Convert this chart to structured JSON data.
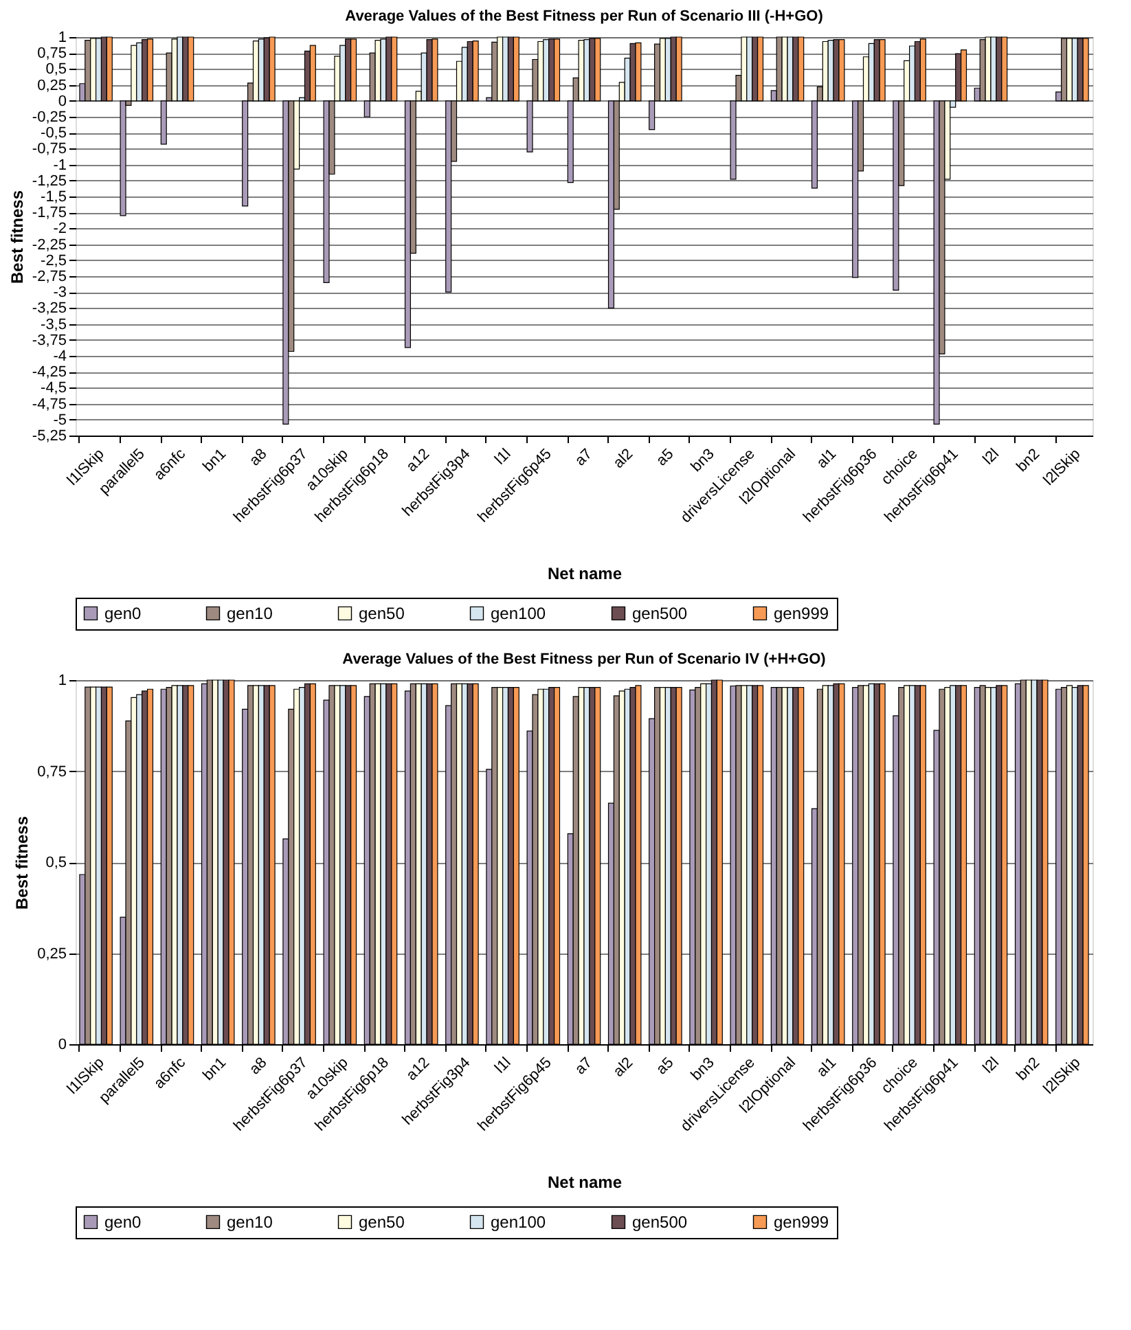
{
  "chart_data": [
    {
      "type": "bar",
      "title": "Average Values of the Best Fitness per Run of Scenario III (-H+GO)",
      "xlabel": "Net name",
      "ylabel": "Best fitness",
      "categories": [
        "l1lSkip",
        "parallel5",
        "a6nfc",
        "bn1",
        "a8",
        "herbstFig6p37",
        "a10skip",
        "herbstFig6p18",
        "a12",
        "herbstFig3p4",
        "l1l",
        "herbstFig6p45",
        "a7",
        "al2",
        "a5",
        "bn3",
        "driversLicense",
        "l2lOptional",
        "al1",
        "herbstFig6p36",
        "choice",
        "herbstFig6p41",
        "l2l",
        "bn2",
        "l2lSkip"
      ],
      "series": [
        {
          "name": "gen0",
          "color": "#a99bb8",
          "values": [
            0.27,
            -1.8,
            -0.68,
            null,
            -1.65,
            -5.07,
            -2.85,
            -0.25,
            -3.87,
            -3.0,
            0.05,
            -0.8,
            -1.28,
            -3.25,
            -0.45,
            null,
            -1.23,
            0.16,
            -1.37,
            -2.77,
            -2.97,
            -5.07,
            0.2,
            null,
            0.14
          ]
        },
        {
          "name": "gen10",
          "color": "#9e8a80",
          "values": [
            0.95,
            -0.07,
            0.75,
            null,
            0.28,
            -3.93,
            -1.15,
            0.75,
            -2.39,
            -0.95,
            0.92,
            0.65,
            0.36,
            -1.7,
            0.89,
            null,
            0.4,
            1.0,
            0.22,
            -1.1,
            -1.33,
            -3.97,
            0.96,
            null,
            0.98
          ]
        },
        {
          "name": "gen50",
          "color": "#fffbe0",
          "values": [
            0.98,
            0.87,
            0.97,
            null,
            0.94,
            -1.07,
            0.7,
            0.95,
            0.15,
            0.62,
            1.0,
            0.93,
            0.95,
            0.29,
            0.98,
            null,
            1.0,
            1.0,
            0.93,
            0.69,
            0.63,
            -1.23,
            1.0,
            null,
            0.98
          ]
        },
        {
          "name": "gen100",
          "color": "#d6e6f0",
          "values": [
            0.98,
            0.91,
            1.0,
            null,
            0.97,
            0.05,
            0.87,
            0.97,
            0.75,
            0.84,
            1.0,
            0.96,
            0.96,
            0.67,
            0.98,
            null,
            1.0,
            1.0,
            0.95,
            0.9,
            0.86,
            -0.1,
            1.0,
            null,
            0.98
          ]
        },
        {
          "name": "gen500",
          "color": "#6b4d52",
          "values": [
            1.0,
            0.96,
            1.0,
            null,
            0.99,
            0.78,
            0.97,
            1.0,
            0.96,
            0.93,
            1.0,
            0.97,
            0.98,
            0.9,
            1.0,
            null,
            1.0,
            1.0,
            0.96,
            0.96,
            0.93,
            0.74,
            1.0,
            null,
            0.98
          ]
        },
        {
          "name": "gen999",
          "color": "#f79a55",
          "values": [
            1.0,
            0.97,
            1.0,
            null,
            1.0,
            0.87,
            0.97,
            1.0,
            0.97,
            0.94,
            1.0,
            0.97,
            0.98,
            0.91,
            1.0,
            null,
            1.0,
            1.0,
            0.96,
            0.96,
            0.97,
            0.8,
            1.0,
            null,
            0.98
          ]
        }
      ],
      "ylim": [
        -5.25,
        1
      ],
      "yticks": [
        {
          "value": 1,
          "label": "1"
        },
        {
          "value": 0.75,
          "label": "0,75"
        },
        {
          "value": 0.5,
          "label": "0,5"
        },
        {
          "value": 0.25,
          "label": "0,25"
        },
        {
          "value": 0,
          "label": "0"
        },
        {
          "value": -0.25,
          "label": "-0,25"
        },
        {
          "value": -0.5,
          "label": "-0,5"
        },
        {
          "value": -0.75,
          "label": "-0,75"
        },
        {
          "value": -1,
          "label": "-1"
        },
        {
          "value": -1.25,
          "label": "-1,25"
        },
        {
          "value": -1.5,
          "label": "-1,5"
        },
        {
          "value": -1.75,
          "label": "-1,75"
        },
        {
          "value": -2,
          "label": "-2"
        },
        {
          "value": -2.25,
          "label": "-2,25"
        },
        {
          "value": -2.5,
          "label": "-2,5"
        },
        {
          "value": -2.75,
          "label": "-2,75"
        },
        {
          "value": -3,
          "label": "-3"
        },
        {
          "value": -3.25,
          "label": "-3,25"
        },
        {
          "value": -3.5,
          "label": "-3,5"
        },
        {
          "value": -3.75,
          "label": "-3,75"
        },
        {
          "value": -4,
          "label": "-4"
        },
        {
          "value": -4.25,
          "label": "-4,25"
        },
        {
          "value": -4.5,
          "label": "-4,5"
        },
        {
          "value": -4.75,
          "label": "-4,75"
        },
        {
          "value": -5,
          "label": "-5"
        },
        {
          "value": -5.25,
          "label": "-5,25"
        }
      ],
      "grid": "y",
      "legend": "bottom"
    },
    {
      "type": "bar",
      "title": "Average Values of the Best Fitness per Run of Scenario IV (+H+GO)",
      "xlabel": "Net name",
      "ylabel": "Best fitness",
      "categories": [
        "l1lSkip",
        "parallel5",
        "a6nfc",
        "bn1",
        "a8",
        "herbstFig6p37",
        "a10skip",
        "herbstFig6p18",
        "a12",
        "herbstFig3p4",
        "l1l",
        "herbstFig6p45",
        "a7",
        "al2",
        "a5",
        "bn3",
        "driversLicense",
        "l2lOptional",
        "al1",
        "herbstFig6p36",
        "choice",
        "herbstFig6p41",
        "l2l",
        "bn2",
        "l2lSkip"
      ],
      "series": [
        {
          "name": "gen0",
          "color": "#a99bb8",
          "values": [
            0.466,
            0.349,
            0.975,
            0.99,
            0.92,
            0.564,
            0.945,
            0.955,
            0.97,
            0.93,
            0.755,
            0.86,
            0.578,
            0.662,
            0.894,
            0.973,
            0.984,
            0.98,
            0.647,
            0.98,
            0.902,
            0.862,
            0.98,
            0.99,
            0.975
          ]
        },
        {
          "name": "gen10",
          "color": "#9e8a80",
          "values": [
            0.981,
            0.888,
            0.98,
            1.0,
            0.985,
            0.92,
            0.985,
            0.99,
            0.99,
            0.99,
            0.98,
            0.96,
            0.955,
            0.957,
            0.98,
            0.98,
            0.985,
            0.98,
            0.975,
            0.985,
            0.98,
            0.975,
            0.985,
            1.0,
            0.98
          ]
        },
        {
          "name": "gen50",
          "color": "#fffbe0",
          "values": [
            0.981,
            0.952,
            0.985,
            1.0,
            0.985,
            0.975,
            0.985,
            0.99,
            0.99,
            0.99,
            0.98,
            0.975,
            0.98,
            0.97,
            0.98,
            0.99,
            0.985,
            0.98,
            0.985,
            0.985,
            0.985,
            0.98,
            0.98,
            1.0,
            0.985
          ]
        },
        {
          "name": "gen100",
          "color": "#d6e6f0",
          "values": [
            0.981,
            0.96,
            0.985,
            1.0,
            0.985,
            0.98,
            0.985,
            0.99,
            0.99,
            0.99,
            0.98,
            0.975,
            0.98,
            0.975,
            0.98,
            0.99,
            0.985,
            0.98,
            0.985,
            0.99,
            0.985,
            0.985,
            0.98,
            1.0,
            0.98
          ]
        },
        {
          "name": "gen500",
          "color": "#6b4d52",
          "values": [
            0.981,
            0.97,
            0.985,
            1.0,
            0.985,
            0.99,
            0.985,
            0.99,
            0.99,
            0.99,
            0.98,
            0.98,
            0.98,
            0.98,
            0.98,
            1.0,
            0.985,
            0.98,
            0.99,
            0.99,
            0.985,
            0.985,
            0.985,
            1.0,
            0.985
          ]
        },
        {
          "name": "gen999",
          "color": "#f79a55",
          "values": [
            0.981,
            0.975,
            0.985,
            1.0,
            0.985,
            0.99,
            0.985,
            0.99,
            0.99,
            0.99,
            0.98,
            0.98,
            0.98,
            0.985,
            0.98,
            1.0,
            0.985,
            0.98,
            0.99,
            0.99,
            0.985,
            0.985,
            0.985,
            1.0,
            0.985
          ]
        }
      ],
      "ylim": [
        0,
        1
      ],
      "yticks": [
        {
          "value": 0,
          "label": "0"
        },
        {
          "value": 0.25,
          "label": "0,25"
        },
        {
          "value": 0.5,
          "label": "0,5"
        },
        {
          "value": 0.75,
          "label": "0,75"
        },
        {
          "value": 1,
          "label": "1"
        }
      ],
      "grid": "y",
      "legend": "bottom"
    }
  ]
}
